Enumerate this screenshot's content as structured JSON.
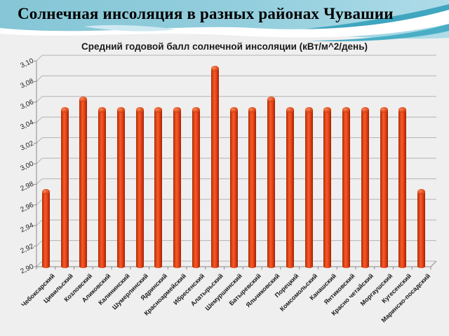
{
  "slide": {
    "title": "Солнечная инсоляция в разных районах Чувашии"
  },
  "colors": {
    "background": "#efefef",
    "header_teal": "#8ccbdb",
    "header_teal_dark": "#2e9cb8",
    "header_wave_white": "#ffffff",
    "bar_fill": "#e8421c",
    "gridline": "#b3b3b3",
    "axis": "#8a8a8a",
    "text": "#1a1a1a"
  },
  "chart_data": {
    "type": "bar",
    "style": "3d-cylinder",
    "title": "Средний годовой балл солнечной инсоляции (кВт/м^2/день)",
    "xlabel": "",
    "ylabel": "",
    "ylim": [
      2.9,
      3.1
    ],
    "ytick_step": 0.02,
    "ytick_labels": [
      "2,90",
      "2,92",
      "2,94",
      "2,96",
      "2,98",
      "3,00",
      "3,02",
      "3,04",
      "3,06",
      "3,08",
      "3,10"
    ],
    "grid": true,
    "legend": false,
    "categories": [
      "Чебоксарский",
      "Цивильский",
      "Козловский",
      "Аликовский",
      "Калининский",
      "Шумерлинский",
      "Ядринский",
      "Красноармейский",
      "Ибресенский",
      "Алатырьский",
      "Шемуршинский",
      "Батыревский",
      "Яльчиковский",
      "Порецкий",
      "Комсомольский",
      "Канашский",
      "Янтиковский",
      "Красно четайский",
      "Моргаушский",
      "Кугесенский",
      "Маринско-посадский"
    ],
    "values": [
      2.97,
      3.05,
      3.06,
      3.05,
      3.05,
      3.05,
      3.05,
      3.05,
      3.05,
      3.09,
      3.05,
      3.05,
      3.06,
      3.05,
      3.05,
      3.05,
      3.05,
      3.05,
      3.05,
      3.05,
      2.97
    ]
  }
}
